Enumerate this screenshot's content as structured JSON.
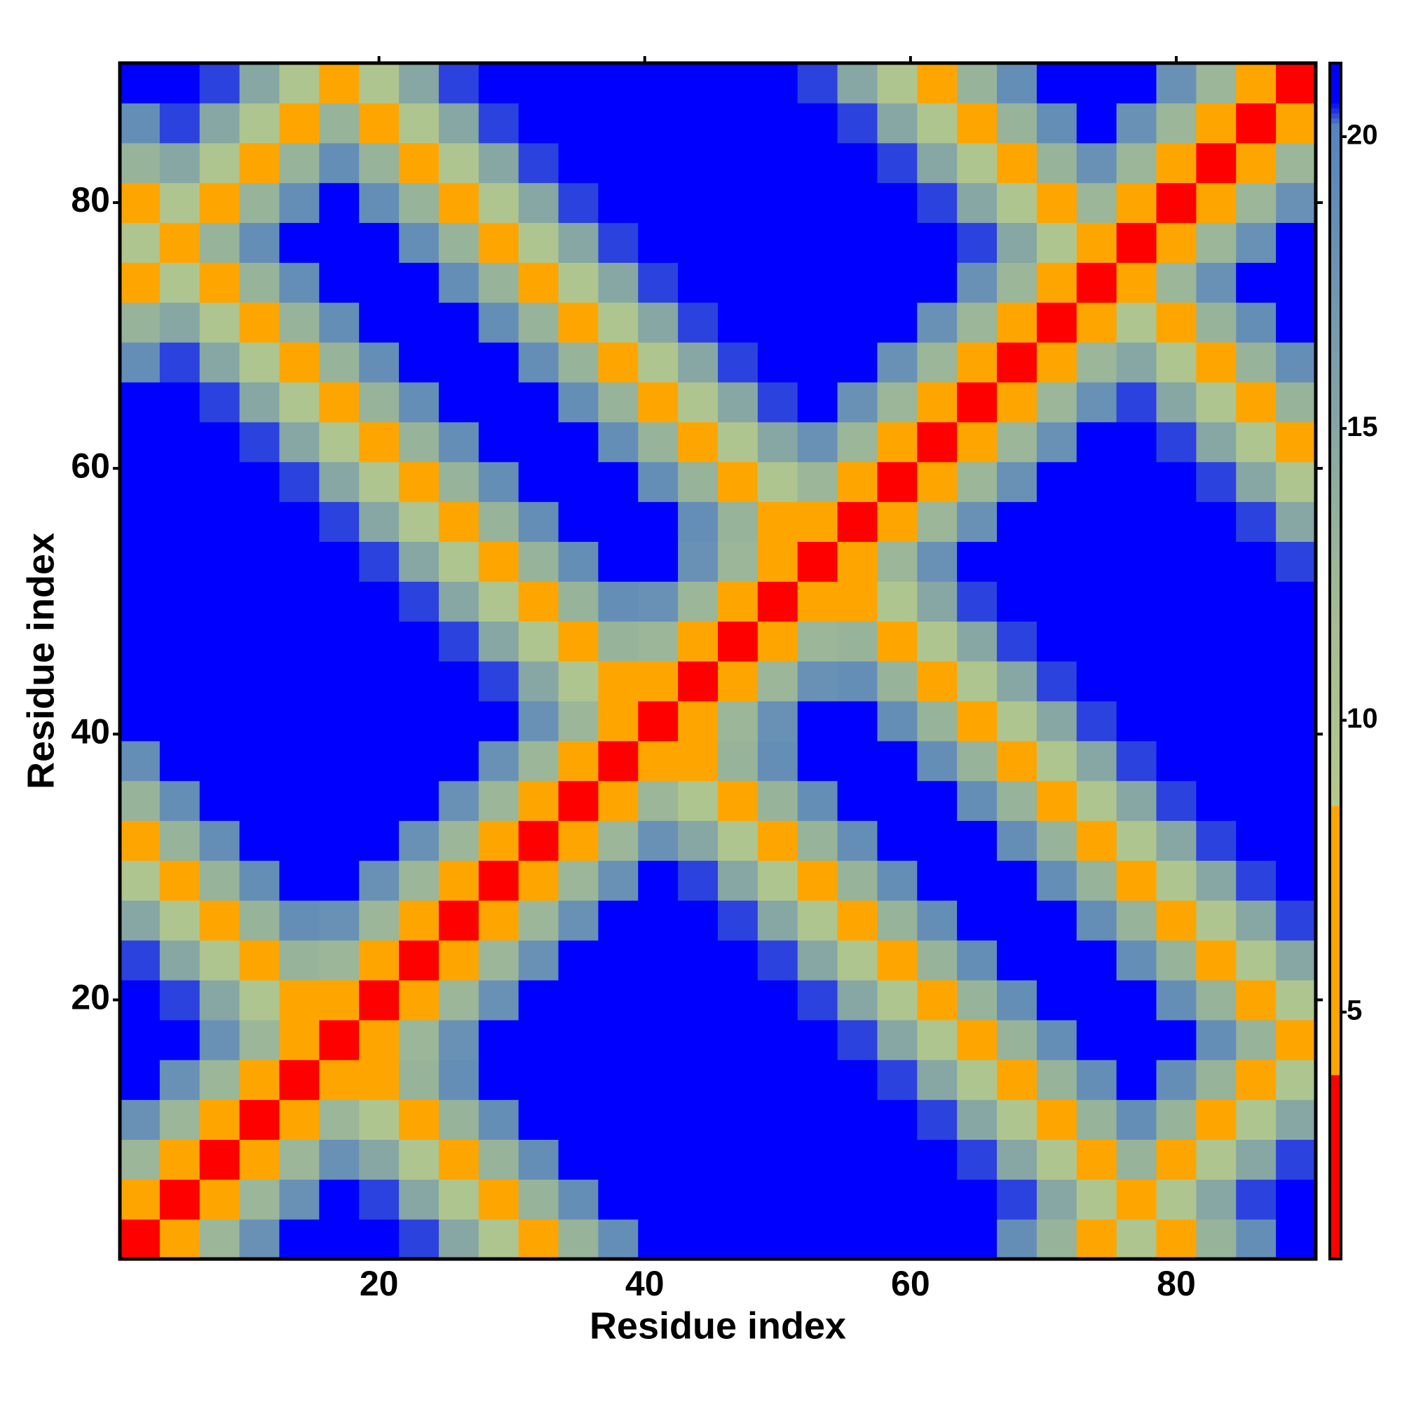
{
  "chart_data": {
    "type": "heatmap",
    "xlabel": "Residue index",
    "ylabel": "Residue index",
    "x": [
      2,
      5,
      8,
      11,
      14,
      17,
      20,
      23,
      26,
      29,
      32,
      35,
      38,
      41,
      44,
      47,
      50,
      53,
      56,
      59,
      62,
      65,
      68,
      71,
      74,
      77,
      80,
      83,
      86,
      89
    ],
    "y": [
      2,
      5,
      8,
      11,
      14,
      17,
      20,
      23,
      26,
      29,
      32,
      35,
      38,
      41,
      44,
      47,
      50,
      53,
      56,
      59,
      62,
      65,
      68,
      71,
      74,
      77,
      80,
      83,
      86,
      89
    ],
    "xlim": [
      0.5,
      90.5
    ],
    "ylim": [
      0.5,
      90.5
    ],
    "xticks": [
      20,
      40,
      60,
      80
    ],
    "yticks": [
      20,
      40,
      60,
      80
    ],
    "zlim": [
      0.77,
      21.26
    ],
    "zticks": [
      5,
      10,
      15,
      20
    ],
    "colormap": [
      {
        "value": 0.77,
        "color": "#ff0000"
      },
      {
        "value": 3.9,
        "color": "#ff0000"
      },
      {
        "value": 3.9,
        "color": "#ffa500"
      },
      {
        "value": 8.5,
        "color": "#ffa500"
      },
      {
        "value": 8.5,
        "color": "#b5c98c"
      },
      {
        "value": 12,
        "color": "#a2bb94"
      },
      {
        "value": 20.2,
        "color": "#5683c0"
      },
      {
        "value": 20.6,
        "color": "#0000ff"
      },
      {
        "value": 21.26,
        "color": "#0000ff"
      }
    ],
    "z": [
      [
        2,
        7.4,
        12.8,
        18.2,
        21,
        21,
        21,
        20.4,
        15,
        9.6,
        7.8,
        13.2,
        18.6,
        21,
        21,
        21,
        21,
        21,
        21,
        21,
        21,
        21,
        18.6,
        13.2,
        7.8,
        9.6,
        7.8,
        13.2,
        18.6,
        21
      ],
      [
        7.4,
        2,
        7.4,
        12.8,
        18.2,
        21,
        20.4,
        15,
        9.6,
        7.8,
        13.2,
        18.6,
        21,
        21,
        21,
        21,
        21,
        21,
        21,
        21,
        21,
        21,
        20.4,
        15,
        9.6,
        7.8,
        9.6,
        15,
        20.4,
        21
      ],
      [
        12.8,
        7.4,
        2,
        7.4,
        12.8,
        18.2,
        15,
        9.6,
        7.8,
        13.2,
        18.6,
        21,
        21,
        21,
        21,
        21,
        21,
        21,
        21,
        21,
        21,
        20.4,
        15,
        9.6,
        7.8,
        13.2,
        7.8,
        9.6,
        15,
        20.4
      ],
      [
        18.2,
        12.8,
        7.4,
        2,
        7.4,
        12.8,
        9.6,
        7.8,
        13.2,
        18.6,
        21,
        21,
        21,
        21,
        21,
        21,
        21,
        21,
        21,
        21,
        20.4,
        15,
        9.6,
        7.8,
        13.2,
        18.6,
        13.2,
        7.8,
        9.6,
        15
      ],
      [
        21,
        18.2,
        12.8,
        7.4,
        2,
        7.4,
        7.8,
        13.2,
        18.6,
        21,
        21,
        21,
        21,
        21,
        21,
        21,
        21,
        21,
        21,
        20.4,
        15,
        9.6,
        7.8,
        13.2,
        18.6,
        21,
        18.6,
        13.2,
        7.8,
        9.6
      ],
      [
        21,
        21,
        18.2,
        12.8,
        7.4,
        2,
        7.4,
        12.8,
        18.2,
        21,
        21,
        21,
        21,
        21,
        21,
        21,
        21,
        21,
        20.4,
        15,
        9.6,
        7.8,
        13.2,
        18.6,
        21,
        21,
        21,
        18.6,
        13.2,
        7.8
      ],
      [
        21,
        20.4,
        15,
        9.6,
        7.8,
        7.4,
        2,
        7.4,
        12.8,
        18.2,
        21,
        21,
        21,
        21,
        21,
        21,
        21,
        20.4,
        15,
        9.6,
        7.8,
        13.2,
        18.6,
        21,
        21,
        21,
        18.6,
        13.2,
        7.8,
        9.6
      ],
      [
        20.4,
        15,
        9.6,
        7.8,
        13.2,
        12.8,
        7.4,
        2,
        7.4,
        12.8,
        18.2,
        21,
        21,
        21,
        21,
        21,
        20.4,
        15,
        9.6,
        7.8,
        13.2,
        18.6,
        21,
        21,
        21,
        18.6,
        13.2,
        7.8,
        9.6,
        15
      ],
      [
        15,
        9.6,
        7.8,
        13.2,
        18.6,
        18.2,
        12.8,
        7.4,
        2,
        7.4,
        12.8,
        18.2,
        21,
        21,
        21,
        20.4,
        15,
        9.6,
        7.8,
        13.2,
        18.6,
        21,
        21,
        21,
        18.6,
        13.2,
        7.8,
        9.6,
        15,
        20.4
      ],
      [
        9.6,
        7.8,
        13.2,
        18.6,
        21,
        21,
        18.2,
        12.8,
        7.4,
        2,
        7.4,
        12.8,
        18.2,
        21,
        20.4,
        15,
        9.6,
        7.8,
        13.2,
        18.6,
        21,
        21,
        21,
        18.6,
        13.2,
        7.8,
        9.6,
        15,
        20.4,
        21
      ],
      [
        7.8,
        13.2,
        18.6,
        21,
        21,
        21,
        21,
        18.2,
        12.8,
        7.4,
        2,
        7.4,
        12.8,
        18.2,
        15,
        9.6,
        7.8,
        13.2,
        18.6,
        21,
        21,
        21,
        18.6,
        13.2,
        7.8,
        9.6,
        15,
        20.4,
        21,
        21
      ],
      [
        13.2,
        18.6,
        21,
        21,
        21,
        21,
        21,
        21,
        18.2,
        12.8,
        7.4,
        2,
        7.4,
        12.8,
        9.6,
        7.8,
        13.2,
        18.6,
        21,
        21,
        21,
        18.6,
        13.2,
        7.8,
        9.6,
        15,
        20.4,
        21,
        21,
        21
      ],
      [
        18.6,
        21,
        21,
        21,
        21,
        21,
        21,
        21,
        21,
        18.2,
        12.8,
        7.4,
        2,
        7.4,
        7.8,
        13.2,
        18.6,
        21,
        21,
        21,
        18.6,
        13.2,
        7.8,
        9.6,
        15,
        20.4,
        21,
        21,
        21,
        21
      ],
      [
        21,
        21,
        21,
        21,
        21,
        21,
        21,
        21,
        21,
        21,
        18.2,
        12.8,
        7.4,
        2,
        7.4,
        12.8,
        18.2,
        21,
        21,
        18.6,
        13.2,
        7.8,
        9.6,
        15,
        20.4,
        21,
        21,
        21,
        21,
        21
      ],
      [
        21,
        21,
        21,
        21,
        21,
        21,
        21,
        21,
        21,
        20.4,
        15,
        9.6,
        7.8,
        7.4,
        2,
        7.4,
        12.8,
        18.2,
        18.6,
        13.2,
        7.8,
        9.6,
        15,
        20.4,
        21,
        21,
        21,
        21,
        21,
        21
      ],
      [
        21,
        21,
        21,
        21,
        21,
        21,
        21,
        21,
        20.4,
        15,
        9.6,
        7.8,
        13.2,
        12.8,
        7.4,
        2,
        7.4,
        12.8,
        13.2,
        7.8,
        9.6,
        15,
        20.4,
        21,
        21,
        21,
        21,
        21,
        21,
        21
      ],
      [
        21,
        21,
        21,
        21,
        21,
        21,
        21,
        20.4,
        15,
        9.6,
        7.8,
        13.2,
        18.6,
        18.2,
        12.8,
        7.4,
        2,
        7.4,
        7.8,
        9.6,
        15,
        20.4,
        21,
        21,
        21,
        21,
        21,
        21,
        21,
        21
      ],
      [
        21,
        21,
        21,
        21,
        21,
        21,
        20.4,
        15,
        9.6,
        7.8,
        13.2,
        18.6,
        21,
        21,
        18.2,
        12.8,
        7.4,
        2,
        7.4,
        12.8,
        18.2,
        21,
        21,
        21,
        21,
        21,
        21,
        21,
        21,
        20.4
      ],
      [
        21,
        21,
        21,
        21,
        21,
        20.4,
        15,
        9.6,
        7.8,
        13.2,
        18.6,
        21,
        21,
        21,
        18.6,
        13.2,
        7.8,
        7.4,
        2,
        7.4,
        12.8,
        18.2,
        21,
        21,
        21,
        21,
        21,
        21,
        20.4,
        15
      ],
      [
        21,
        21,
        21,
        21,
        20.4,
        15,
        9.6,
        7.8,
        13.2,
        18.6,
        21,
        21,
        21,
        18.6,
        13.2,
        7.8,
        9.6,
        12.8,
        7.4,
        2,
        7.4,
        12.8,
        18.2,
        21,
        21,
        21,
        21,
        20.4,
        15,
        9.6
      ],
      [
        21,
        21,
        21,
        20.4,
        15,
        9.6,
        7.8,
        13.2,
        18.6,
        21,
        21,
        21,
        18.6,
        13.2,
        7.8,
        9.6,
        15,
        18.2,
        12.8,
        7.4,
        2,
        7.4,
        12.8,
        18.2,
        21,
        21,
        20.4,
        15,
        9.6,
        7.8
      ],
      [
        21,
        21,
        20.4,
        15,
        9.6,
        7.8,
        13.2,
        18.6,
        21,
        21,
        21,
        18.6,
        13.2,
        7.8,
        9.6,
        15,
        20.4,
        21,
        18.2,
        12.8,
        7.4,
        2,
        7.4,
        12.8,
        18.2,
        20.4,
        15,
        9.6,
        7.8,
        13.2
      ],
      [
        18.6,
        20.4,
        15,
        9.6,
        7.8,
        13.2,
        18.6,
        21,
        21,
        21,
        18.6,
        13.2,
        7.8,
        9.6,
        15,
        20.4,
        21,
        21,
        21,
        18.2,
        12.8,
        7.4,
        2,
        7.4,
        12.8,
        15,
        9.6,
        7.8,
        13.2,
        18.6
      ],
      [
        13.2,
        15,
        9.6,
        7.8,
        13.2,
        18.6,
        21,
        21,
        21,
        18.6,
        13.2,
        7.8,
        9.6,
        15,
        20.4,
        21,
        21,
        21,
        21,
        21,
        18.2,
        12.8,
        7.4,
        2,
        7.4,
        9.6,
        7.8,
        13.2,
        18.6,
        21
      ],
      [
        7.8,
        9.6,
        7.8,
        13.2,
        18.6,
        21,
        21,
        21,
        18.6,
        13.2,
        7.8,
        9.6,
        15,
        20.4,
        21,
        21,
        21,
        21,
        21,
        21,
        21,
        18.2,
        12.8,
        7.4,
        2,
        7.4,
        12.8,
        18.2,
        21,
        21
      ],
      [
        9.6,
        7.8,
        13.2,
        18.6,
        21,
        21,
        21,
        18.6,
        13.2,
        7.8,
        9.6,
        15,
        20.4,
        21,
        21,
        21,
        21,
        21,
        21,
        21,
        21,
        20.4,
        15,
        9.6,
        7.4,
        2,
        7.4,
        12.8,
        18.2,
        21
      ],
      [
        7.8,
        9.6,
        7.8,
        13.2,
        18.6,
        21,
        18.6,
        13.2,
        7.8,
        9.6,
        15,
        20.4,
        21,
        21,
        21,
        21,
        21,
        21,
        21,
        21,
        20.4,
        15,
        9.6,
        7.8,
        12.8,
        7.4,
        2,
        7.4,
        12.8,
        18.2
      ],
      [
        13.2,
        15,
        9.6,
        7.8,
        13.2,
        18.6,
        13.2,
        7.8,
        9.6,
        15,
        20.4,
        21,
        21,
        21,
        21,
        21,
        21,
        21,
        21,
        20.4,
        15,
        9.6,
        7.8,
        13.2,
        18.2,
        12.8,
        7.4,
        2,
        7.4,
        12.8
      ],
      [
        18.6,
        20.4,
        15,
        9.6,
        7.8,
        13.2,
        7.8,
        9.6,
        15,
        20.4,
        21,
        21,
        21,
        21,
        21,
        21,
        21,
        21,
        20.4,
        15,
        9.6,
        7.8,
        13.2,
        18.6,
        21,
        18.2,
        12.8,
        7.4,
        2,
        7.4
      ],
      [
        21,
        21,
        20.4,
        15,
        9.6,
        7.8,
        9.6,
        15,
        20.4,
        21,
        21,
        21,
        21,
        21,
        21,
        21,
        21,
        20.4,
        15,
        9.6,
        7.8,
        13.2,
        18.6,
        21,
        21,
        21,
        18.2,
        12.8,
        7.4,
        2
      ]
    ]
  }
}
